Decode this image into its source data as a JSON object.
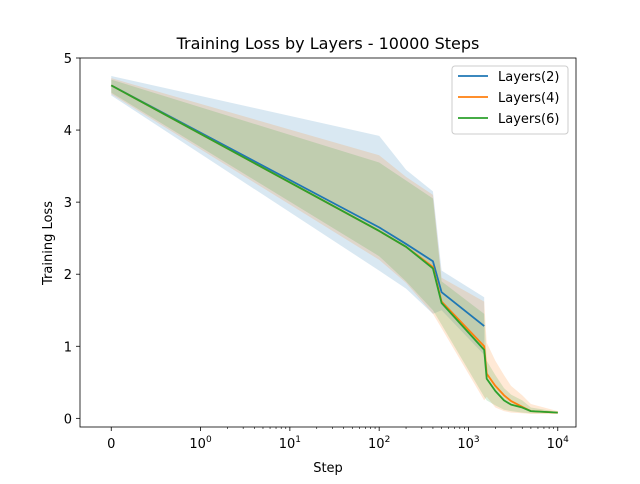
{
  "chart_data": {
    "type": "line",
    "title": "Training Loss by Layers - 10000 Steps",
    "xlabel": "Step",
    "ylabel": "Training Loss",
    "x_scale": "symlog",
    "xlim": [
      -0.35,
      16000
    ],
    "ylim": [
      -0.12,
      5.0
    ],
    "grid": false,
    "legend_position": "top-right",
    "x_ticks": [
      {
        "value": 0,
        "label": "0"
      },
      {
        "value": 1,
        "label": "10",
        "exp": "0"
      },
      {
        "value": 10,
        "label": "10",
        "exp": "1"
      },
      {
        "value": 100,
        "label": "10",
        "exp": "2"
      },
      {
        "value": 1000,
        "label": "10",
        "exp": "3"
      },
      {
        "value": 10000,
        "label": "10",
        "exp": "4"
      }
    ],
    "y_ticks": [
      0,
      1,
      2,
      3,
      4,
      5
    ],
    "series": [
      {
        "name": "Layers(2)",
        "color": "#1f77b4",
        "x": [
          0,
          100,
          200,
          400,
          500,
          1500
        ],
        "y": [
          4.62,
          2.65,
          2.42,
          2.18,
          1.75,
          1.28
        ],
        "lower": [
          4.48,
          2.05,
          1.8,
          1.45,
          1.5,
          0.88
        ],
        "upper": [
          4.75,
          3.92,
          3.45,
          3.15,
          2.05,
          1.68
        ]
      },
      {
        "name": "Layers(4)",
        "color": "#ff7f0e",
        "x": [
          0,
          100,
          200,
          400,
          500,
          1500,
          1600,
          2000,
          2500,
          3000,
          4000,
          5000,
          10000
        ],
        "y": [
          4.62,
          2.6,
          2.38,
          2.1,
          1.62,
          1.0,
          0.62,
          0.45,
          0.32,
          0.24,
          0.16,
          0.1,
          0.08
        ],
        "lower": [
          4.5,
          2.2,
          1.88,
          1.45,
          1.25,
          0.25,
          0.3,
          0.15,
          0.1,
          0.08,
          0.07,
          0.06,
          0.06
        ],
        "upper": [
          4.72,
          3.65,
          3.35,
          3.1,
          1.95,
          1.62,
          1.05,
          0.8,
          0.6,
          0.45,
          0.32,
          0.2,
          0.1
        ]
      },
      {
        "name": "Layers(6)",
        "color": "#2ca02c",
        "x": [
          0,
          100,
          200,
          400,
          500,
          1500,
          1600,
          2000,
          2500,
          3000,
          4000,
          5000,
          10000
        ],
        "y": [
          4.62,
          2.6,
          2.38,
          2.08,
          1.6,
          0.95,
          0.55,
          0.38,
          0.25,
          0.19,
          0.15,
          0.1,
          0.08
        ],
        "lower": [
          4.52,
          2.25,
          1.9,
          1.5,
          1.3,
          0.3,
          0.25,
          0.18,
          0.12,
          0.1,
          0.08,
          0.07,
          0.07
        ],
        "upper": [
          4.7,
          3.55,
          3.3,
          3.05,
          1.9,
          1.45,
          0.8,
          0.6,
          0.42,
          0.33,
          0.25,
          0.15,
          0.09
        ]
      }
    ]
  }
}
